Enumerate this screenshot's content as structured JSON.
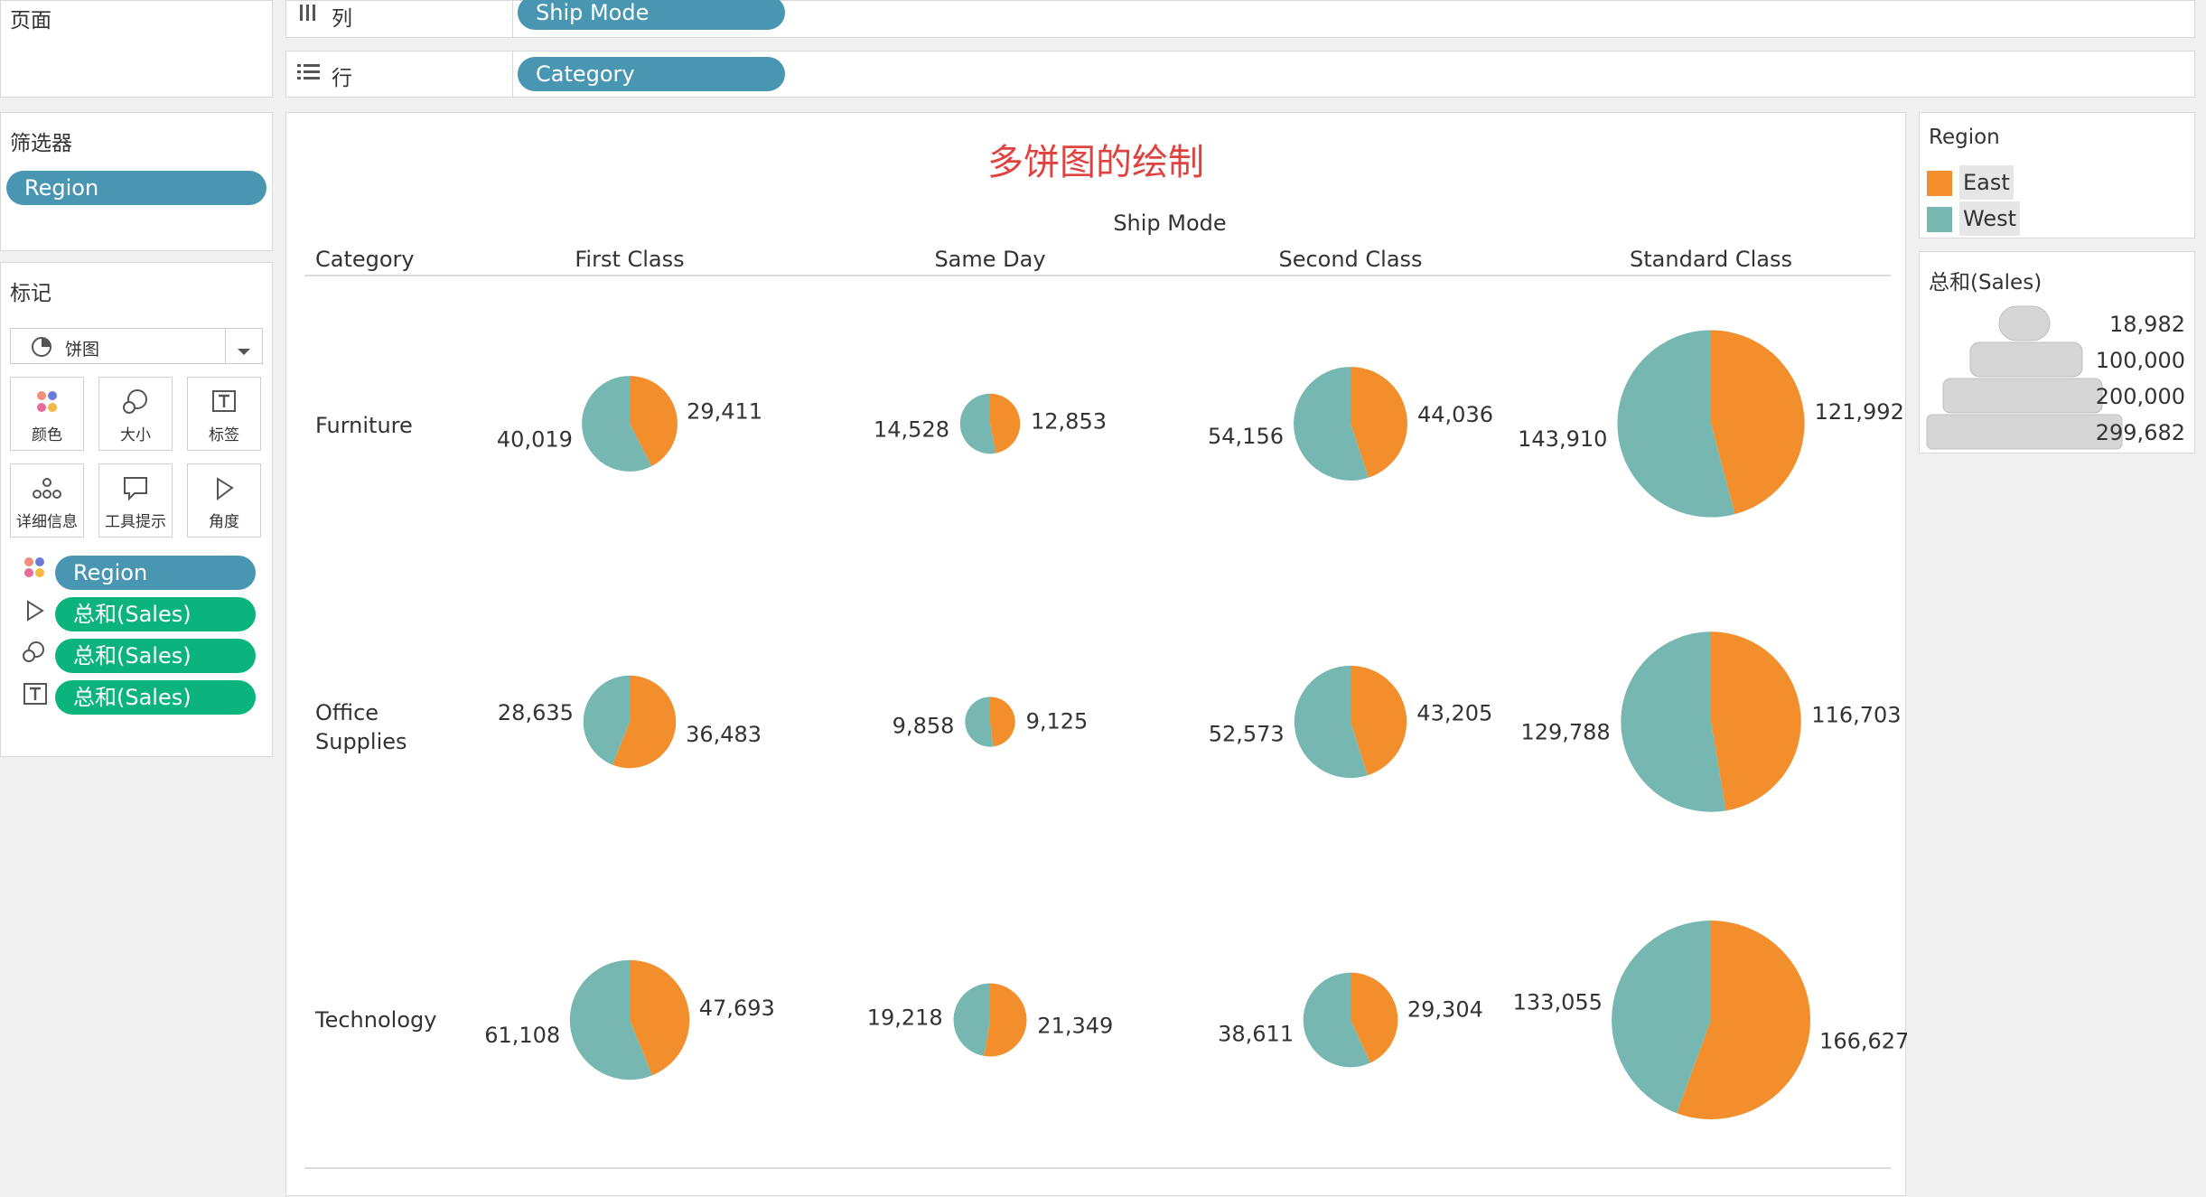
{
  "shelves": {
    "pages_label": "页面",
    "columns_label": "列",
    "rows_label": "行",
    "columns_pill": "Ship Mode",
    "rows_pill": "Category"
  },
  "filters": {
    "title": "筛选器",
    "items": [
      "Region"
    ]
  },
  "marks": {
    "title": "标记",
    "mark_type": "饼图",
    "buttons": {
      "color": "颜色",
      "size": "大小",
      "label": "标签",
      "detail": "详细信息",
      "tooltip": "工具提示",
      "angle": "角度"
    },
    "pills": {
      "color": "Region",
      "angle": "总和(Sales)",
      "size": "总和(Sales)",
      "label": "总和(Sales)"
    }
  },
  "legend_region": {
    "title": "Region",
    "items": [
      {
        "label": "East",
        "color": "#f28e2b"
      },
      {
        "label": "West",
        "color": "#76b7b2"
      }
    ]
  },
  "legend_size": {
    "title": "总和(Sales)",
    "items": [
      "18,982",
      "100,000",
      "200,000",
      "299,682"
    ]
  },
  "view": {
    "title": "多饼图的绘制",
    "column_header": "Ship Mode",
    "row_header": "Category"
  },
  "chart_data": {
    "type": "pie",
    "title": "多饼图的绘制",
    "columns": [
      "First Class",
      "Same Day",
      "Second Class",
      "Standard Class"
    ],
    "rows": [
      {
        "label": "Furniture",
        "lines": [
          "Furniture"
        ]
      },
      {
        "label": "Office Supplies",
        "lines": [
          "Office",
          "Supplies"
        ]
      },
      {
        "label": "Technology",
        "lines": [
          "Technology"
        ]
      }
    ],
    "series": [
      {
        "name": "East",
        "color": "#f28e2b"
      },
      {
        "name": "West",
        "color": "#76b7b2"
      }
    ],
    "values": [
      [
        {
          "East": 29411,
          "West": 40019,
          "East_label": "29,411",
          "West_label": "40,019"
        },
        {
          "East": 12853,
          "West": 14528,
          "East_label": "12,853",
          "West_label": "14,528"
        },
        {
          "East": 44036,
          "West": 54156,
          "East_label": "44,036",
          "West_label": "54,156"
        },
        {
          "East": 121992,
          "West": 143910,
          "East_label": "121,992",
          "West_label": "143,910"
        }
      ],
      [
        {
          "East": 36483,
          "West": 28635,
          "East_label": "36,483",
          "West_label": "28,635"
        },
        {
          "East": 9125,
          "West": 9858,
          "East_label": "9,125",
          "West_label": "9,858"
        },
        {
          "East": 43205,
          "West": 52573,
          "East_label": "43,205",
          "West_label": "52,573"
        },
        {
          "East": 116703,
          "West": 129788,
          "East_label": "116,703",
          "West_label": "129,788"
        }
      ],
      [
        {
          "East": 47693,
          "West": 61108,
          "East_label": "47,693",
          "West_label": "61,108"
        },
        {
          "East": 21349,
          "West": 19218,
          "East_label": "21,349",
          "West_label": "19,218"
        },
        {
          "East": 29304,
          "West": 38611,
          "East_label": "29,304",
          "West_label": "38,611"
        },
        {
          "East": 166627,
          "West": 133055,
          "East_label": "166,627",
          "West_label": "133,055"
        }
      ]
    ],
    "size_measure_range": [
      18982,
      299682
    ]
  }
}
